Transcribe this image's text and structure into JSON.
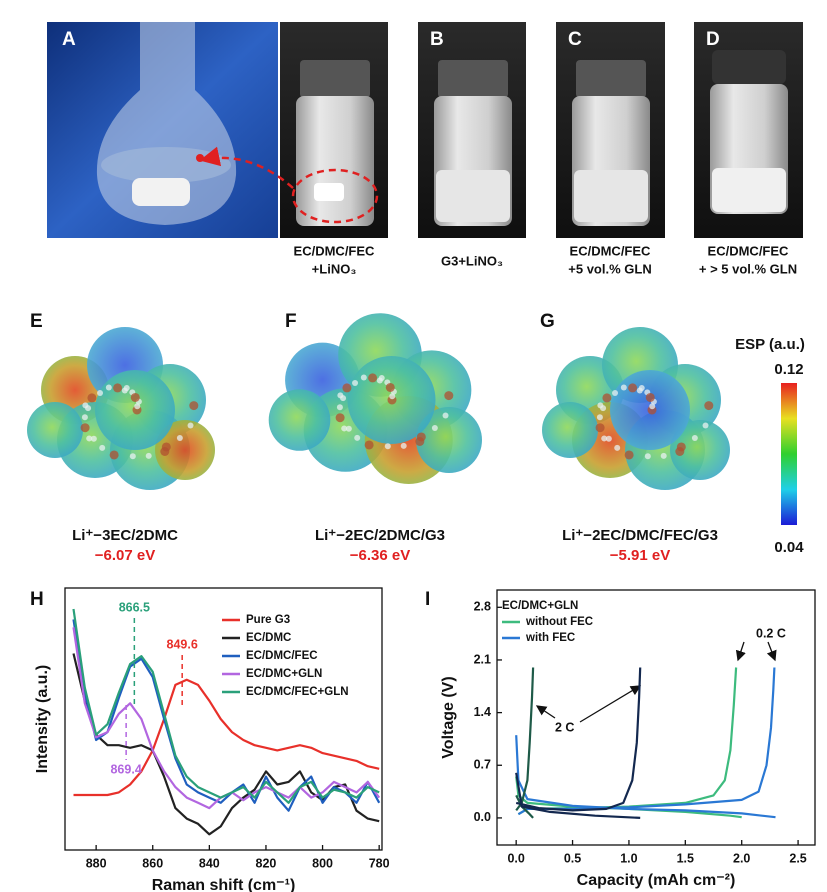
{
  "panels": {
    "labels": [
      "A",
      "B",
      "C",
      "D",
      "E",
      "F",
      "G",
      "H",
      "I"
    ]
  },
  "photos": [
    {
      "caption": [
        "EC/DMC/FEC",
        "+LiNO₃"
      ]
    },
    {
      "caption": [
        "G3+LiNO₃"
      ]
    },
    {
      "caption": [
        "EC/DMC/FEC",
        "+5 vol.% GLN"
      ]
    },
    {
      "caption": [
        "EC/DMC/FEC",
        "+ > 5 vol.% GLN"
      ]
    }
  ],
  "molecules": [
    {
      "name": "Li⁺−3EC/2DMC",
      "energy": "−6.07 eV"
    },
    {
      "name": "Li⁺−2EC/2DMC/G3",
      "energy": "−6.36 eV"
    },
    {
      "name": "Li⁺−2EC/DMC/FEC/G3",
      "energy": "−5.91 eV"
    }
  ],
  "colorbar": {
    "title": "ESP (a.u.)",
    "max": 0.12,
    "min": 0.04
  },
  "chart_data": [
    {
      "type": "line",
      "x_label": "Raman shift (cm⁻¹)",
      "y_label": "Intensity (a.u.)",
      "x": [
        888,
        884,
        880,
        876,
        872,
        868,
        864,
        860,
        856,
        852,
        848,
        844,
        840,
        836,
        832,
        828,
        824,
        820,
        816,
        812,
        808,
        804,
        800,
        796,
        792,
        788,
        784,
        780
      ],
      "xlim": [
        891,
        779
      ],
      "ylim": [
        0,
        100
      ],
      "xticks": [
        880,
        860,
        840,
        820,
        800,
        780
      ],
      "series": [
        {
          "name": "Pure G3",
          "color": "#e8302a",
          "values": [
            21,
            21,
            21,
            21,
            22,
            25,
            30,
            38,
            50,
            63,
            65,
            63,
            57,
            50,
            45,
            42,
            40,
            39,
            38,
            39,
            40,
            39,
            37,
            36,
            35,
            34,
            32,
            31
          ]
        },
        {
          "name": "EC/DMC",
          "color": "#222222",
          "values": [
            75,
            57,
            44,
            40,
            40,
            39,
            40,
            38,
            28,
            16,
            12,
            10,
            6,
            9,
            16,
            20,
            23,
            30,
            25,
            26,
            30,
            22,
            19,
            24,
            25,
            15,
            12,
            11
          ]
        },
        {
          "name": "EC/DMC/FEC",
          "color": "#1f5fbf",
          "values": [
            88,
            60,
            42,
            45,
            58,
            70,
            73,
            66,
            50,
            35,
            25,
            22,
            20,
            18,
            22,
            25,
            18,
            28,
            20,
            15,
            24,
            28,
            18,
            24,
            22,
            18,
            26,
            18
          ]
        },
        {
          "name": "EC/DMC+GLN",
          "color": "#b266e0",
          "values": [
            85,
            56,
            43,
            45,
            52,
            56,
            50,
            38,
            30,
            24,
            20,
            18,
            16,
            20,
            22,
            19,
            22,
            24,
            22,
            20,
            24,
            20,
            22,
            26,
            24,
            22,
            26,
            20
          ]
        },
        {
          "name": "EC/DMC/FEC+GLN",
          "color": "#2aa07a",
          "values": [
            92,
            62,
            44,
            48,
            60,
            71,
            74,
            68,
            52,
            36,
            28,
            24,
            22,
            20,
            22,
            24,
            20,
            26,
            22,
            18,
            24,
            26,
            20,
            23,
            22,
            20,
            24,
            22
          ]
        }
      ],
      "peak_labels": [
        {
          "value": 866.5,
          "color": "#2aa07a"
        },
        {
          "value": 849.6,
          "color": "#e8302a"
        },
        {
          "value": 869.4,
          "color": "#b266e0"
        }
      ]
    },
    {
      "type": "line",
      "x_label": "Capacity (mAh cm⁻²)",
      "y_label": "Voltage (V)",
      "legend_title": "EC/DMC+GLN",
      "xlim": [
        -0.17,
        2.65
      ],
      "ylim": [
        -0.36,
        3.03
      ],
      "xticks": [
        {
          "value": 0,
          "label": "0.0"
        },
        0.5,
        {
          "value": 1,
          "label": "1.0"
        },
        1.5,
        {
          "value": 2,
          "label": "2.0"
        },
        2.5
      ],
      "yticks": [
        {
          "value": 0,
          "label": "0.0"
        },
        0.7,
        1.4,
        2.1,
        2.8
      ],
      "series": [
        {
          "name": "without FEC",
          "color": "#3dbb7e",
          "x": [
            0.02,
            0.1,
            0.5,
            1.0,
            1.5,
            1.75,
            1.85,
            1.9,
            1.93,
            1.95,
            null,
            0.0,
            0.02,
            0.1,
            0.5,
            1.0,
            1.5,
            1.9,
            2.0
          ],
          "values": [
            0.05,
            0.12,
            0.13,
            0.15,
            0.2,
            0.3,
            0.5,
            0.9,
            1.5,
            2.0,
            null,
            0.55,
            0.3,
            0.2,
            0.15,
            0.12,
            0.08,
            0.03,
            0.01
          ]
        },
        {
          "name": "with FEC",
          "color": "#2a78d4",
          "x": [
            0.02,
            0.1,
            0.5,
            1.0,
            1.5,
            2.0,
            2.15,
            2.22,
            2.26,
            2.28,
            2.29,
            null,
            0.0,
            0.02,
            0.1,
            0.5,
            1.0,
            1.5,
            2.0,
            2.3
          ],
          "values": [
            0.05,
            0.12,
            0.12,
            0.14,
            0.18,
            0.24,
            0.35,
            0.7,
            1.2,
            1.7,
            2.0,
            null,
            1.1,
            0.5,
            0.25,
            0.16,
            0.12,
            0.1,
            0.06,
            0.01
          ]
        },
        {
          "color": "#1e5a48",
          "x": [
            0.0,
            0.05,
            0.1,
            0.12,
            0.14,
            0.15,
            null,
            0.0,
            0.05,
            0.12,
            0.15
          ],
          "values": [
            0.1,
            0.2,
            0.5,
            1.0,
            1.6,
            2.0,
            null,
            0.3,
            0.15,
            0.05,
            0.0
          ]
        },
        {
          "color": "#13284f",
          "x": [
            0.0,
            0.2,
            0.5,
            0.8,
            0.95,
            1.03,
            1.07,
            1.09,
            1.1,
            null,
            0.0,
            0.05,
            0.3,
            0.7,
            1.1
          ],
          "values": [
            0.2,
            0.13,
            0.1,
            0.12,
            0.2,
            0.5,
            1.0,
            1.6,
            2.0,
            null,
            0.6,
            0.15,
            0.08,
            0.03,
            0.0
          ]
        }
      ],
      "annotations": [
        "2 C",
        "0.2 C"
      ]
    }
  ]
}
